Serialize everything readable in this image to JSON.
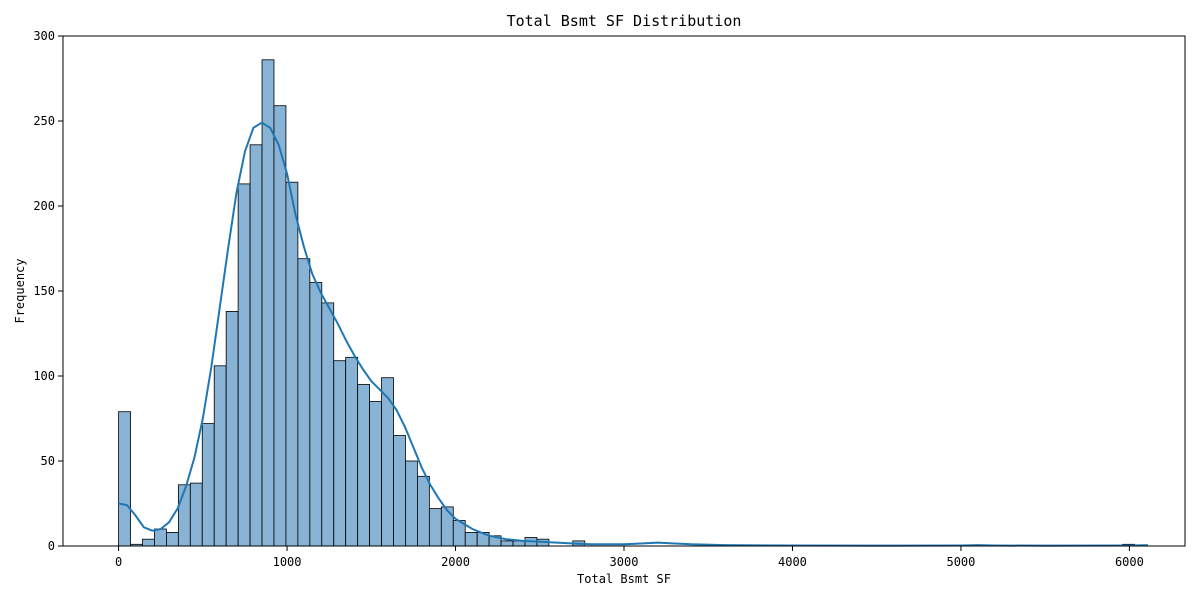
{
  "chart_data": {
    "type": "histogram",
    "title": "Total Bsmt SF Distribution",
    "xlabel": "Total Bsmt SF",
    "ylabel": "Frequency",
    "xlim": [
      -330,
      6330
    ],
    "ylim": [
      0,
      300
    ],
    "x_ticks": [
      0,
      1000,
      2000,
      3000,
      4000,
      5000,
      6000
    ],
    "y_ticks": [
      0,
      50,
      100,
      150,
      200,
      250,
      300
    ],
    "bin_width": 70.95,
    "bin_start": 0,
    "counts": [
      79,
      1,
      4,
      10,
      8,
      36,
      37,
      72,
      106,
      138,
      213,
      236,
      286,
      259,
      214,
      169,
      155,
      143,
      109,
      111,
      95,
      85,
      99,
      65,
      50,
      41,
      22,
      23,
      15,
      8,
      8,
      6,
      3,
      3,
      5,
      4,
      0,
      0,
      3,
      0,
      0,
      0,
      0,
      0,
      0,
      0,
      0,
      0,
      0,
      0,
      0,
      0,
      0,
      0,
      0,
      0,
      0,
      0,
      0,
      0,
      0,
      0,
      0,
      0,
      0,
      0,
      0,
      0,
      0,
      0,
      0,
      0,
      0,
      0,
      0,
      0,
      0,
      0,
      0,
      0,
      0,
      0,
      0,
      0,
      1,
      0
    ],
    "kde": {
      "x": [
        0,
        50,
        100,
        150,
        200,
        250,
        300,
        350,
        400,
        450,
        500,
        550,
        600,
        650,
        700,
        750,
        800,
        850,
        900,
        950,
        1000,
        1050,
        1100,
        1150,
        1200,
        1250,
        1300,
        1350,
        1400,
        1450,
        1500,
        1550,
        1600,
        1650,
        1700,
        1750,
        1800,
        1850,
        1900,
        1950,
        2000,
        2100,
        2200,
        2300,
        2400,
        2500,
        2600,
        2700,
        2800,
        2900,
        3000,
        3100,
        3200,
        3300,
        3400,
        3600,
        4000,
        4500,
        5000,
        5100,
        5200,
        5500,
        6000,
        6110
      ],
      "y": [
        25,
        24,
        18,
        11,
        9,
        10,
        14,
        22,
        35,
        52,
        75,
        105,
        140,
        175,
        208,
        232,
        246,
        249,
        246,
        236,
        219,
        195,
        176,
        160,
        149,
        140,
        131,
        121,
        112,
        104,
        97,
        92,
        87,
        80,
        70,
        58,
        46,
        36,
        28,
        21,
        16,
        10,
        6,
        4,
        3,
        2.5,
        2,
        1.5,
        1,
        1,
        1,
        1.5,
        2,
        1.5,
        1,
        0.5,
        0.3,
        0.2,
        0.3,
        0.5,
        0.3,
        0.2,
        0.3,
        0.5
      ]
    },
    "colors": {
      "bar_fill": "#89b3d4",
      "bar_edge": "#000000",
      "kde_line": "#1f77b4"
    },
    "grid": false,
    "legend": "none"
  }
}
